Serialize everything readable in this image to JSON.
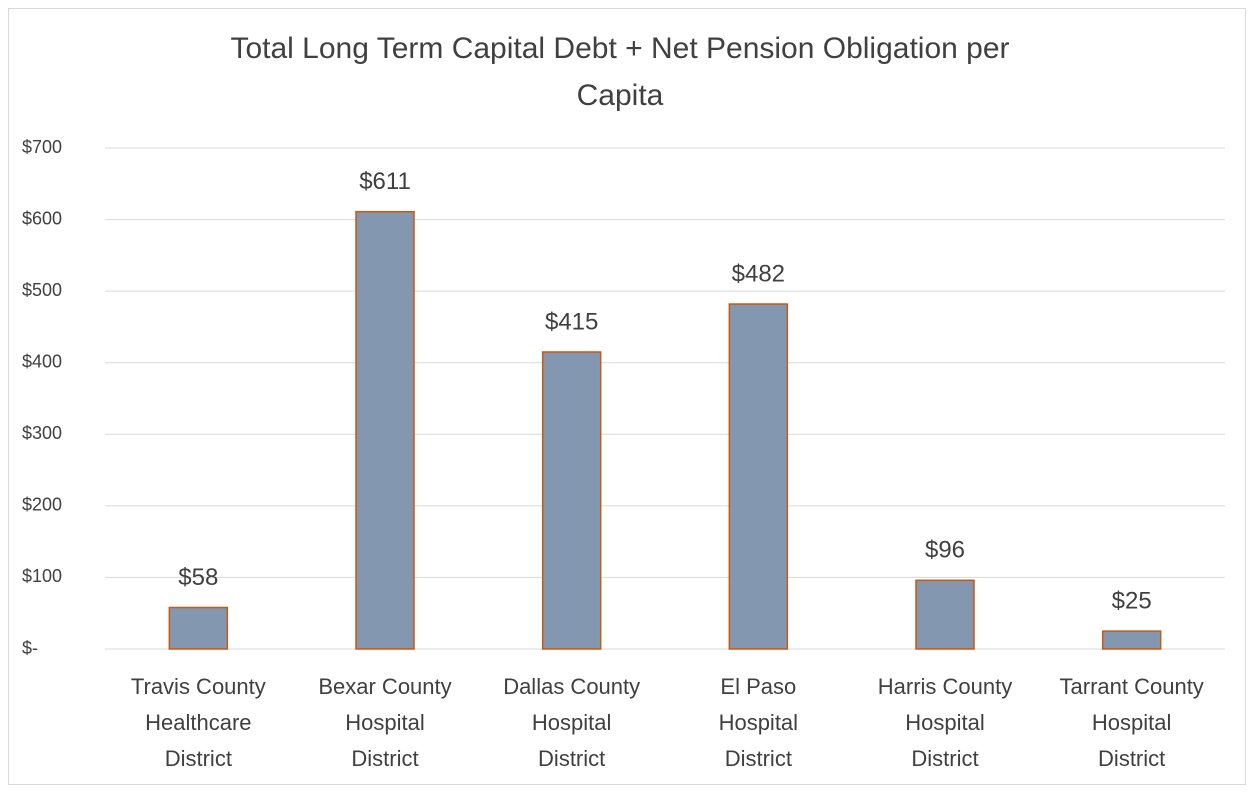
{
  "chart_data": {
    "type": "bar",
    "title": [
      "Total Long Term Capital Debt + Net Pension Obligation per",
      "Capita"
    ],
    "categories": [
      [
        "Travis County",
        "Healthcare",
        "District"
      ],
      [
        "Bexar County",
        "Hospital",
        "District"
      ],
      [
        "Dallas County",
        "Hospital",
        "District"
      ],
      [
        "El Paso",
        "Hospital",
        "District"
      ],
      [
        "Harris County",
        "Hospital",
        "District"
      ],
      [
        "Tarrant County",
        "Hospital",
        "District"
      ]
    ],
    "values": [
      58,
      611,
      415,
      482,
      96,
      25
    ],
    "value_labels": [
      "$58",
      "$611",
      "$415",
      "$482",
      "$96",
      "$25"
    ],
    "color": "#8497b0",
    "edge_color": "#c55a11",
    "ylim": [
      0,
      700
    ],
    "yticks": [
      {
        "value": 0,
        "label": "$-"
      },
      {
        "value": 100,
        "label": "$100"
      },
      {
        "value": 200,
        "label": "$200"
      },
      {
        "value": 300,
        "label": "$300"
      },
      {
        "value": 400,
        "label": "$400"
      },
      {
        "value": 500,
        "label": "$500"
      },
      {
        "value": 600,
        "label": "$600"
      },
      {
        "value": 700,
        "label": "$700"
      }
    ],
    "grid": true
  }
}
